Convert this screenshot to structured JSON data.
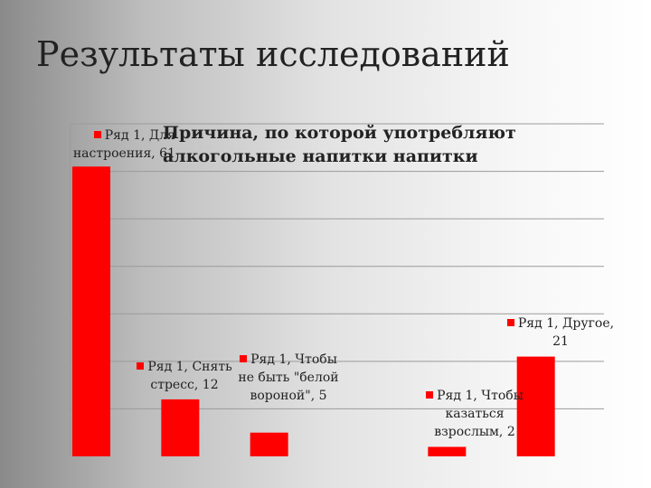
{
  "slide": {
    "title": "Результаты исследований"
  },
  "chart_data": {
    "type": "bar",
    "title": "Причина, по которой употребляют алкогольные напитки напитки",
    "series": [
      {
        "name": "Ряд 1",
        "color": "#ff0000"
      }
    ],
    "categories": [
      "Для настроения",
      "Снять стресс",
      "Чтобы не быть \"белой вороной\"",
      "",
      "Чтобы казаться взрослым",
      "Другое"
    ],
    "values": [
      61,
      12,
      5,
      null,
      2,
      21
    ],
    "data_labels": [
      "Ряд 1, Для настроения, 61",
      "Ряд 1, Снять стресс, 12",
      "Ряд 1, Чтобы не быть \"белой вороной\", 5",
      "",
      "Ряд 1, Чтобы казаться взрослым, 2",
      "Ряд 1, Другое, 21"
    ],
    "ylim": [
      0,
      70
    ],
    "grid": true,
    "legend": "none"
  }
}
